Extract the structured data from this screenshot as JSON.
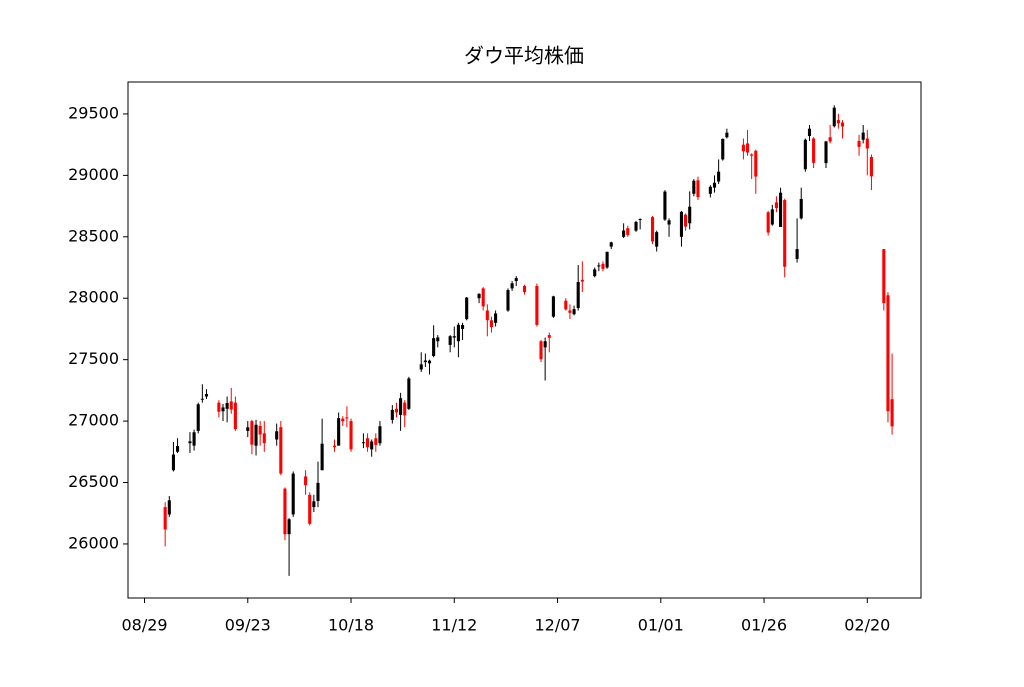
{
  "chart_data": {
    "type": "candlestick",
    "title": "ダウ平均株価",
    "up_color": "#000000",
    "down_color": "#ff0000",
    "x": [
      "09/03",
      "09/04",
      "09/05",
      "09/06",
      "09/09",
      "09/10",
      "09/11",
      "09/12",
      "09/13",
      "09/16",
      "09/17",
      "09/18",
      "09/19",
      "09/20",
      "09/23",
      "09/24",
      "09/25",
      "09/26",
      "09/27",
      "09/30",
      "10/01",
      "10/02",
      "10/03",
      "10/04",
      "10/07",
      "10/08",
      "10/09",
      "10/10",
      "10/11",
      "10/14",
      "10/15",
      "10/16",
      "10/17",
      "10/18",
      "10/21",
      "10/22",
      "10/23",
      "10/24",
      "10/25",
      "10/28",
      "10/29",
      "10/30",
      "10/31",
      "11/01",
      "11/04",
      "11/05",
      "11/06",
      "11/07",
      "11/08",
      "11/11",
      "11/12",
      "11/13",
      "11/14",
      "11/15",
      "11/18",
      "11/19",
      "11/20",
      "11/21",
      "11/22",
      "11/25",
      "11/26",
      "11/27",
      "11/29",
      "12/02",
      "12/03",
      "12/04",
      "12/05",
      "12/06",
      "12/09",
      "12/10",
      "12/11",
      "12/12",
      "12/13",
      "12/16",
      "12/17",
      "12/18",
      "12/19",
      "12/20",
      "12/23",
      "12/24",
      "12/26",
      "12/27",
      "12/30",
      "12/31",
      "01/02",
      "01/03",
      "01/06",
      "01/07",
      "01/08",
      "01/09",
      "01/10",
      "01/13",
      "01/14",
      "01/15",
      "01/16",
      "01/17",
      "01/21",
      "01/22",
      "01/23",
      "01/24",
      "01/27",
      "01/28",
      "01/29",
      "01/30",
      "01/31",
      "02/03",
      "02/04",
      "02/05",
      "02/06",
      "02/07",
      "02/10",
      "02/11",
      "02/12",
      "02/13",
      "02/14",
      "02/18",
      "02/19",
      "02/20",
      "02/21",
      "02/24",
      "02/25",
      "02/26"
    ],
    "open": [
      26300,
      26240,
      26600,
      26750,
      26820,
      26800,
      26920,
      27180,
      27200,
      27150,
      27080,
      27100,
      27160,
      27150,
      26920,
      27000,
      26800,
      26960,
      26900,
      26850,
      26950,
      26450,
      26080,
      26240,
      26550,
      26400,
      26300,
      26350,
      26600,
      26800,
      26800,
      27020,
      27030,
      27000,
      26820,
      26860,
      26770,
      26860,
      26820,
      27010,
      27100,
      27050,
      27150,
      27100,
      27420,
      27480,
      27470,
      27530,
      27650,
      27620,
      27680,
      27650,
      27750,
      27830,
      28000,
      28080,
      27900,
      27820,
      27800,
      27900,
      28080,
      28140,
      28100,
      28100,
      27650,
      27600,
      27700,
      27850,
      27980,
      27900,
      27870,
      27920,
      28150,
      28180,
      28260,
      28280,
      28250,
      28420,
      28500,
      28570,
      28550,
      28640,
      28660,
      28420,
      28640,
      28600,
      28500,
      28680,
      28610,
      28850,
      28960,
      28850,
      28900,
      28950,
      29130,
      29310,
      29250,
      29260,
      29170,
      29200,
      28700,
      28600,
      28780,
      28580,
      28800,
      28320,
      28650,
      29050,
      29320,
      29300,
      29100,
      29310,
      29400,
      29450,
      29430,
      29280,
      29290,
      29300,
      29150,
      28400,
      28024,
      27178
    ],
    "high": [
      26340,
      26390,
      26830,
      26860,
      26910,
      26930,
      27150,
      27300,
      27260,
      27170,
      27140,
      27200,
      27270,
      27200,
      27000,
      27010,
      27010,
      27000,
      27000,
      26980,
      27000,
      26460,
      26210,
      26590,
      26600,
      26420,
      26400,
      26670,
      27020,
      26850,
      27070,
      27040,
      27120,
      27020,
      26900,
      26900,
      26850,
      26900,
      27000,
      27130,
      27150,
      27230,
      27170,
      27360,
      27560,
      27550,
      27500,
      27780,
      27700,
      27700,
      27770,
      27800,
      27800,
      28010,
      28040,
      28090,
      27950,
      27850,
      27900,
      28080,
      28140,
      28180,
      28110,
      28120,
      27660,
      27680,
      27720,
      28020,
      28000,
      27950,
      27940,
      28270,
      28300,
      28250,
      28290,
      28300,
      28380,
      28460,
      28610,
      28590,
      28630,
      28650,
      28670,
      28550,
      28880,
      28650,
      28710,
      28690,
      28870,
      28970,
      28990,
      28920,
      29000,
      29130,
      29300,
      29380,
      29300,
      29370,
      29180,
      29210,
      28710,
      28760,
      28830,
      28900,
      28810,
      28650,
      28900,
      29300,
      29410,
      29310,
      29280,
      29410,
      29570,
      29500,
      29450,
      29330,
      29410,
      29370,
      29170,
      28400,
      28050,
      27550
    ],
    "low": [
      25980,
      26220,
      26590,
      26740,
      26740,
      26760,
      26900,
      27150,
      27180,
      27030,
      27000,
      26990,
      27060,
      26920,
      26870,
      26730,
      26720,
      26800,
      26750,
      26800,
      26560,
      26030,
      25740,
      26220,
      26400,
      26150,
      26260,
      26300,
      26600,
      26750,
      26800,
      26960,
      26950,
      26750,
      26780,
      26750,
      26710,
      26750,
      26800,
      26980,
      27030,
      26920,
      26950,
      27090,
      27400,
      27440,
      27380,
      27520,
      27600,
      27560,
      27600,
      27520,
      27660,
      27820,
      27960,
      27900,
      27690,
      27720,
      27770,
      27890,
      28060,
      28100,
      28030,
      27770,
      27480,
      27330,
      27560,
      27840,
      27900,
      27830,
      27860,
      27900,
      28050,
      28170,
      28220,
      28220,
      28240,
      28400,
      28490,
      28500,
      28540,
      28560,
      28440,
      28380,
      28630,
      28500,
      28420,
      28550,
      28560,
      28830,
      28800,
      28820,
      28860,
      28930,
      29120,
      29300,
      29130,
      29160,
      28970,
      28850,
      28510,
      28590,
      28700,
      28580,
      28170,
      28290,
      28640,
      29030,
      29280,
      29060,
      29060,
      29260,
      29390,
      29380,
      29300,
      29160,
      29260,
      29000,
      28880,
      27900,
      26990,
      26890
    ],
    "close": [
      26118,
      26355,
      26728,
      26797,
      26835,
      26909,
      27137,
      27182,
      27220,
      27076,
      27111,
      27147,
      27094,
      26935,
      26949,
      26808,
      26970,
      26891,
      26820,
      26917,
      26573,
      26079,
      26201,
      26573,
      26478,
      26164,
      26347,
      26497,
      26816,
      26787,
      27024,
      26998,
      27026,
      26770,
      26828,
      26788,
      26834,
      26806,
      26958,
      27091,
      27071,
      27186,
      27046,
      27347,
      27462,
      27493,
      27492,
      27675,
      27681,
      27691,
      27691,
      27784,
      27782,
      28005,
      28036,
      27934,
      27821,
      27766,
      27876,
      28066,
      28122,
      28164,
      28051,
      27783,
      27503,
      27650,
      27678,
      28015,
      27909,
      27881,
      27911,
      28132,
      28135,
      28235,
      28267,
      28239,
      28377,
      28455,
      28551,
      28515,
      28621,
      28645,
      28462,
      28538,
      28868,
      28634,
      28703,
      28583,
      28745,
      28956,
      28823,
      28907,
      28940,
      29030,
      29297,
      29348,
      29196,
      29186,
      29160,
      28990,
      28535,
      28723,
      28734,
      28859,
      28256,
      28400,
      28808,
      29290,
      29380,
      29102,
      29276,
      29276,
      29551,
      29423,
      29398,
      29232,
      29348,
      29219,
      28992,
      27961,
      27081,
      26957
    ],
    "xlim": [
      "08/25",
      "03/05"
    ],
    "xticks": [
      "08/29",
      "09/23",
      "10/18",
      "11/12",
      "12/07",
      "01/01",
      "01/26",
      "02/20"
    ],
    "ylim": [
      25560,
      29760
    ],
    "yticks": [
      26000,
      26500,
      27000,
      27500,
      28000,
      28500,
      29000,
      29500
    ]
  }
}
